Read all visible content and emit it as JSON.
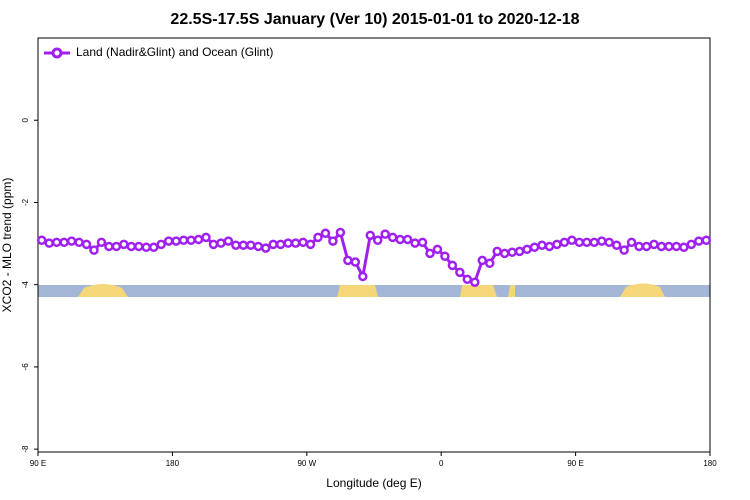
{
  "chart_data": {
    "type": "line",
    "title": "22.5S-17.5S January (Ver 10)   2015-01-01 to 2020-12-18",
    "x_label": "Longitude (deg E)",
    "y_label": "XCO2 - MLO trend (ppm)",
    "xlim": [
      90,
      540
    ],
    "ylim": [
      -8.07,
      2.0
    ],
    "xticks": [
      {
        "value": 90,
        "label": "90 E"
      },
      {
        "value": 180,
        "label": "180"
      },
      {
        "value": 270,
        "label": "90 W"
      },
      {
        "value": 360,
        "label": "0"
      },
      {
        "value": 450,
        "label": "90 E"
      },
      {
        "value": 540,
        "label": "180"
      }
    ],
    "yticks": [
      -8,
      -6,
      -4,
      -2,
      0
    ],
    "legend": "top-left",
    "x": [
      92.5,
      97.5,
      102.5,
      107.5,
      112.5,
      117.5,
      122.5,
      127.5,
      132.5,
      137.5,
      142.5,
      147.5,
      152.5,
      157.5,
      162.5,
      167.5,
      172.5,
      177.5,
      182.5,
      187.5,
      192.5,
      197.5,
      202.5,
      207.5,
      212.5,
      217.5,
      222.5,
      227.5,
      232.5,
      237.5,
      242.5,
      247.5,
      252.5,
      257.5,
      262.5,
      267.5,
      272.5,
      277.5,
      282.5,
      287.5,
      292.5,
      297.5,
      302.5,
      307.5,
      312.5,
      317.5,
      322.5,
      327.5,
      332.5,
      337.5,
      342.5,
      347.5,
      352.5,
      357.5,
      362.5,
      367.5,
      372.5,
      377.5,
      382.5,
      387.5,
      392.5,
      397.5,
      402.5,
      407.5,
      412.5,
      417.5,
      422.5,
      427.5,
      432.5,
      437.5,
      442.5,
      447.5,
      452.5,
      457.5,
      462.5,
      467.5,
      472.5,
      477.5,
      482.5,
      487.5,
      492.5,
      497.5,
      502.5,
      507.5,
      512.5,
      517.5,
      522.5,
      527.5,
      532.5,
      537.5
    ],
    "series": [
      {
        "name": "Land (Nadir&Glint) and Ocean (Glint)",
        "color": "#a020f0",
        "values": [
          -2.92,
          -2.99,
          -2.97,
          -2.97,
          -2.94,
          -2.97,
          -3.02,
          -3.16,
          -2.97,
          -3.07,
          -3.07,
          -3.02,
          -3.07,
          -3.07,
          -3.09,
          -3.09,
          -3.02,
          -2.94,
          -2.94,
          -2.92,
          -2.92,
          -2.9,
          -2.85,
          -3.02,
          -2.99,
          -2.94,
          -3.04,
          -3.04,
          -3.04,
          -3.07,
          -3.11,
          -3.02,
          -3.02,
          -2.99,
          -2.99,
          -2.97,
          -3.02,
          -2.85,
          -2.75,
          -2.94,
          -2.73,
          -3.41,
          -3.45,
          -3.8,
          -2.8,
          -2.92,
          -2.77,
          -2.85,
          -2.9,
          -2.9,
          -2.99,
          -2.97,
          -3.24,
          -3.14,
          -3.31,
          -3.53,
          -3.7,
          -3.87,
          -3.94,
          -3.41,
          -3.48,
          -3.19,
          -3.24,
          -3.21,
          -3.19,
          -3.14,
          -3.09,
          -3.04,
          -3.07,
          -3.02,
          -2.97,
          -2.92,
          -2.97,
          -2.97,
          -2.97,
          -2.94,
          -2.97,
          -3.04,
          -3.16,
          -2.97,
          -3.07,
          -3.07,
          -3.02,
          -3.07,
          -3.07,
          -3.07,
          -3.09,
          -3.02,
          -2.94,
          -2.92
        ]
      }
    ]
  }
}
